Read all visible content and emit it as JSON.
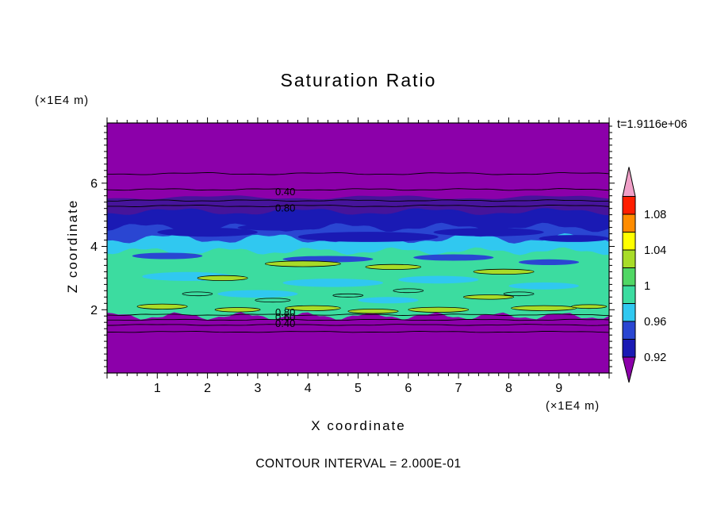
{
  "chart_data": {
    "type": "heatmap",
    "title": "Saturation Ratio",
    "xlabel": "X coordinate",
    "ylabel": "Z coordinate",
    "units_label": "(×1E4 m)",
    "time_annotation": "t=1.9116e+06",
    "contour_interval_label": "CONTOUR INTERVAL = 2.000E-01",
    "contour_interval": 0.2,
    "xlim": [
      0,
      10
    ],
    "ylim": [
      0,
      7.9
    ],
    "x_major_ticks": [
      1,
      2,
      3,
      4,
      5,
      6,
      7,
      8,
      9
    ],
    "y_major_ticks": [
      2,
      4,
      6
    ],
    "minor_tick_step": 0.2,
    "background_color": "#8C00AA",
    "bands": [
      {
        "color": "#46149B",
        "z_top": 5.55,
        "z_bot": 4.55,
        "amp": 3,
        "waves": 3,
        "phase": 0.5
      },
      {
        "color": "#1A1AB4",
        "z_top": 5.1,
        "z_bot": 4.25,
        "amp": 5,
        "waves": 4,
        "phase": 1.2
      },
      {
        "color": "#2A46D2",
        "z_top": 4.6,
        "z_bot": 3.8,
        "amp": 6,
        "waves": 5,
        "phase": 2.4
      },
      {
        "color": "#30C8F0",
        "z_top": 4.25,
        "z_bot": 3.3,
        "amp": 7,
        "waves": 5,
        "phase": 0.8
      },
      {
        "color": "#3CDCA0",
        "z_top": 3.85,
        "z_bot": 1.8,
        "amp": 5,
        "waves": 6,
        "phase": 1.9
      }
    ],
    "bottom_band": {
      "color": "#8C00AA",
      "z_top": 1.66,
      "z_bot": 0,
      "amp": 2,
      "waves": 6,
      "phase": 0.3
    },
    "streak_groups": [
      {
        "color": "#1A1AB4",
        "outline": false,
        "blobs": [
          [
            2.0,
            4.45,
            1.0,
            0.14
          ],
          [
            5.2,
            4.3,
            1.4,
            0.16
          ],
          [
            7.6,
            4.45,
            1.1,
            0.13
          ],
          [
            9.3,
            4.25,
            0.7,
            0.11
          ],
          [
            3.4,
            4.6,
            0.8,
            0.1
          ]
        ]
      },
      {
        "color": "#2A46D2",
        "outline": false,
        "blobs": [
          [
            1.2,
            3.7,
            0.7,
            0.1
          ],
          [
            4.4,
            3.6,
            0.9,
            0.1
          ],
          [
            6.9,
            3.65,
            0.8,
            0.1
          ],
          [
            8.8,
            3.5,
            0.6,
            0.09
          ]
        ]
      },
      {
        "color": "#30C8F0",
        "outline": false,
        "blobs": [
          [
            1.6,
            3.05,
            0.9,
            0.14
          ],
          [
            3.0,
            2.5,
            0.8,
            0.12
          ],
          [
            4.5,
            2.85,
            1.0,
            0.13
          ],
          [
            6.6,
            2.95,
            0.8,
            0.12
          ],
          [
            8.7,
            2.75,
            0.7,
            0.11
          ],
          [
            5.6,
            2.3,
            0.6,
            0.1
          ]
        ]
      },
      {
        "color": "#A8DC28",
        "outline": true,
        "blobs": [
          [
            3.9,
            3.45,
            0.75,
            0.09
          ],
          [
            5.7,
            3.35,
            0.55,
            0.08
          ],
          [
            7.9,
            3.2,
            0.6,
            0.08
          ],
          [
            2.3,
            3.0,
            0.5,
            0.08
          ],
          [
            1.1,
            2.1,
            0.5,
            0.08
          ],
          [
            2.6,
            2.0,
            0.45,
            0.07
          ],
          [
            4.1,
            2.05,
            0.55,
            0.08
          ],
          [
            5.3,
            1.95,
            0.5,
            0.07
          ],
          [
            6.6,
            2.0,
            0.6,
            0.08
          ],
          [
            7.6,
            2.4,
            0.5,
            0.07
          ],
          [
            8.7,
            2.05,
            0.65,
            0.08
          ],
          [
            9.6,
            2.1,
            0.35,
            0.06
          ]
        ]
      },
      {
        "color": "none",
        "outline": true,
        "blobs": [
          [
            1.8,
            2.5,
            0.3,
            0.06
          ],
          [
            3.3,
            2.3,
            0.35,
            0.06
          ],
          [
            6.0,
            2.6,
            0.3,
            0.06
          ],
          [
            8.2,
            2.5,
            0.3,
            0.06
          ],
          [
            4.8,
            2.45,
            0.3,
            0.05
          ]
        ]
      }
    ],
    "contour_lines": [
      {
        "z": 6.3,
        "amp": 1.5,
        "waves": 4,
        "phase": 0.2
      },
      {
        "z": 5.8,
        "amp": 1.2,
        "waves": 5,
        "phase": 1.1
      },
      {
        "z": 5.45,
        "amp": 1.0,
        "waves": 5,
        "phase": 2.0
      },
      {
        "z": 5.28,
        "amp": 1.2,
        "waves": 4,
        "phase": 0.7
      },
      {
        "z": 1.84,
        "amp": 1.0,
        "waves": 5,
        "phase": 1.4
      },
      {
        "z": 1.68,
        "amp": 0.8,
        "waves": 5,
        "phase": 0.3
      },
      {
        "z": 1.52,
        "amp": 0.8,
        "waves": 4,
        "phase": 2.2
      },
      {
        "z": 1.3,
        "amp": 0.8,
        "waves": 4,
        "phase": 1.0
      }
    ],
    "contour_labels": [
      {
        "text": "0.40",
        "x": 3.55,
        "z": 5.72
      },
      {
        "text": "0.80",
        "x": 3.55,
        "z": 5.2
      },
      {
        "text": "0.80",
        "x": 3.55,
        "z": 1.9
      },
      {
        "text": "0.60",
        "x": 3.55,
        "z": 1.76
      },
      {
        "text": "0.40",
        "x": 3.55,
        "z": 1.56
      }
    ],
    "colorbar": {
      "over_color": "#F0A0C8",
      "under_color": "#8C00AA",
      "segments_top_to_bottom": [
        "#FF1E00",
        "#FF8C00",
        "#FFFF00",
        "#A8DC28",
        "#50D764",
        "#3CDCA0",
        "#30C8F0",
        "#2A46D2",
        "#1A1AB4"
      ],
      "labels": [
        {
          "text": "1.08",
          "boundary": 1
        },
        {
          "text": "1.04",
          "boundary": 3
        },
        {
          "text": "1",
          "boundary": 5
        },
        {
          "text": "0.96",
          "boundary": 7
        },
        {
          "text": "0.92",
          "boundary": 9
        }
      ]
    }
  }
}
